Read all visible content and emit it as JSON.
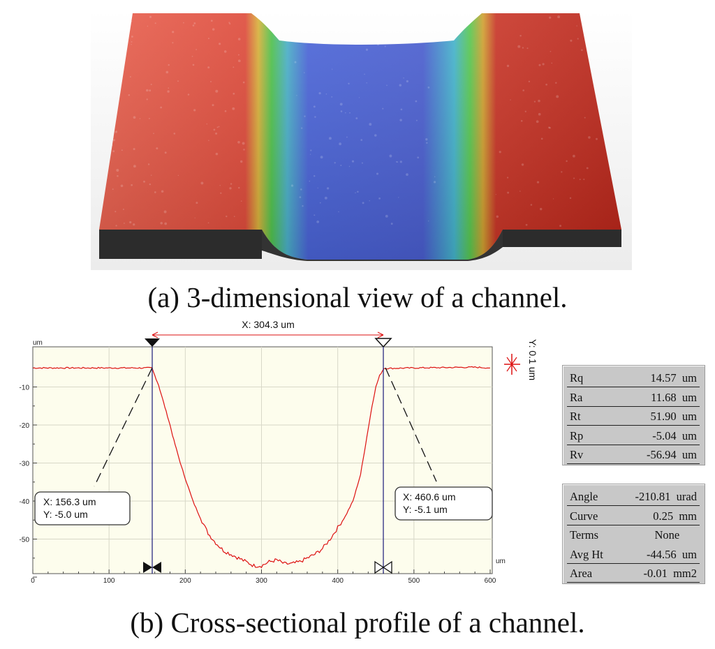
{
  "captions": {
    "a": "(a) 3-dimensional view of a channel.",
    "b": "(b) Cross-sectional profile of a channel."
  },
  "profile": {
    "y_unit": "um",
    "x_unit": "um",
    "span_label": "X: 304.3 um",
    "y_marker": "Y: 0.1 um",
    "x_ticks": [
      "0",
      "100",
      "200",
      "300",
      "400",
      "500",
      "600"
    ],
    "y_ticks": [
      "-10",
      "-20",
      "-30",
      "-40",
      "-50"
    ],
    "left_marker": {
      "x": "X: 156.3 um",
      "y": "Y: -5.0 um"
    },
    "right_marker": {
      "x": "X: 460.6 um",
      "y": "Y: -5.1 um"
    },
    "colors": {
      "trace": "#dd1111",
      "cursor": "#1a1a7a",
      "plot_bg": "#fdfded",
      "grid": "#d8d8c8"
    }
  },
  "chart_data": {
    "type": "line",
    "title": "",
    "xlabel": "um",
    "ylabel": "um",
    "xlim": [
      0,
      600
    ],
    "ylim": [
      -60,
      0
    ],
    "grid": true,
    "series": [
      {
        "x": [
          0,
          100,
          150,
          156.3,
          160,
          165,
          170,
          175,
          180,
          185,
          190,
          195,
          200,
          210,
          220,
          230,
          240,
          250,
          260,
          270,
          280,
          290,
          300,
          310,
          320,
          330,
          340,
          350,
          360,
          370,
          380,
          390,
          400,
          410,
          420,
          430,
          435,
          440,
          445,
          450,
          455,
          460.6,
          470,
          500,
          580,
          600
        ],
        "y": [
          -5.0,
          -5.0,
          -5.0,
          -5.0,
          -7,
          -9.5,
          -13,
          -16.5,
          -20,
          -24,
          -27.5,
          -31,
          -34,
          -40,
          -44.5,
          -48.5,
          -51,
          -53,
          -54,
          -55,
          -56,
          -57,
          -57,
          -56,
          -55.5,
          -56.5,
          -56.5,
          -56,
          -55,
          -54,
          -52.5,
          -50,
          -47,
          -44,
          -40,
          -33,
          -27,
          -21,
          -15,
          -10,
          -7,
          -5.1,
          -5.1,
          -5.0,
          -4.8,
          -5.0
        ]
      }
    ]
  },
  "roughness": [
    {
      "key": "Rq",
      "value": "14.57  um"
    },
    {
      "key": "Ra",
      "value": "11.68  um"
    },
    {
      "key": "Rt",
      "value": "51.90  um"
    },
    {
      "key": "Rp",
      "value": "-5.04  um"
    },
    {
      "key": "Rv",
      "value": "-56.94  um"
    }
  ],
  "params": [
    {
      "key": "Angle",
      "value": "-210.81  urad"
    },
    {
      "key": "Curve",
      "value": "0.25  mm"
    },
    {
      "key": "Terms",
      "value": "None      "
    },
    {
      "key": "Avg Ht",
      "value": "-44.56  um"
    },
    {
      "key": "Area",
      "value": "-0.01  mm2"
    }
  ]
}
